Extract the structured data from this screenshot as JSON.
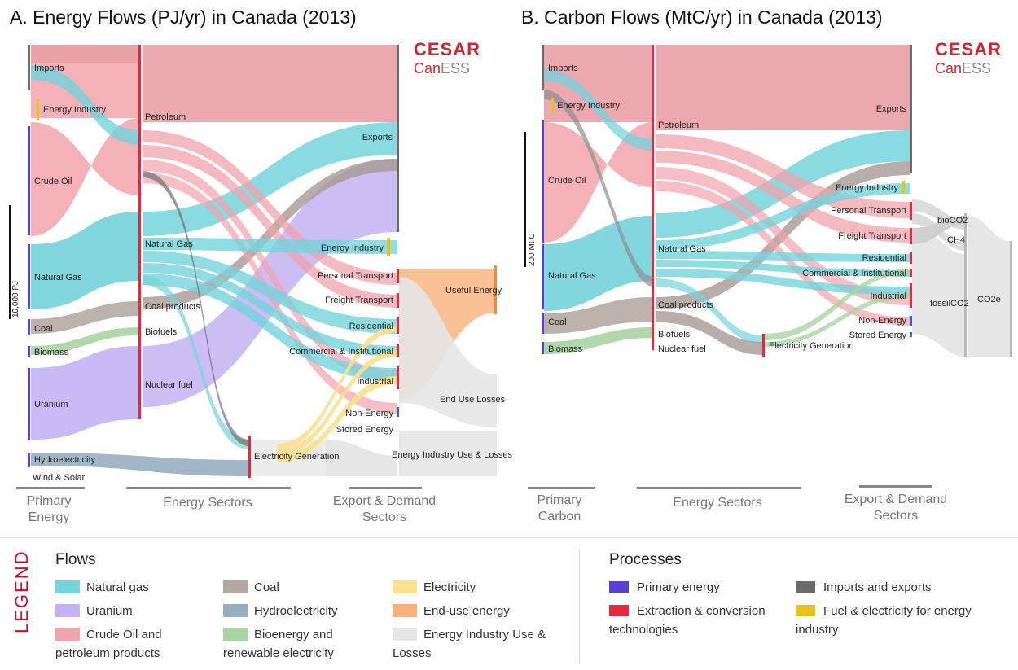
{
  "panel_a": {
    "title": "A. Energy Flows (PJ/yr) in Canada (2013)",
    "scale_label": "10,000 PJ",
    "primary_labels": [
      "Imports",
      "Energy Industry",
      "Crude Oil",
      "Natural Gas",
      "Coal",
      "Biomass",
      "Uranium",
      "Hydroelectricity",
      "Wind & Solar"
    ],
    "sector_labels": [
      "Petroleum",
      "Natural Gas",
      "Coal products",
      "Biofuels",
      "Nuclear fuel",
      "Electricity Generation"
    ],
    "demand_labels": [
      "Exports",
      "Energy Industry",
      "Personal Transport",
      "Freight Transport",
      "Residential",
      "Commercial & Institutional",
      "Industrial",
      "Non-Energy",
      "Stored Energy",
      "Useful Energy",
      "End Use Losses",
      "Energy Industry Use & Losses"
    ],
    "stages": [
      {
        "line1": "Primary",
        "line2": "Energy"
      },
      {
        "line1": "Energy Sectors",
        "line2": ""
      },
      {
        "line1": "Export & Demand",
        "line2": "Sectors"
      }
    ]
  },
  "panel_b": {
    "title": "B. Carbon Flows (MtC/yr) in Canada (2013)",
    "scale_label": "200 Mt C",
    "primary_labels": [
      "Imports",
      "Energy Industry",
      "Crude Oil",
      "Natural Gas",
      "Coal",
      "Biomass"
    ],
    "sector_labels": [
      "Petroleum",
      "Natural Gas",
      "Coal products",
      "Biofuels",
      "Nuclear fuel",
      "Electricity Generation"
    ],
    "demand_labels": [
      "Exports",
      "Energy Industry",
      "Personal Transport",
      "Freight Transport",
      "Residential",
      "Commercial & Institutional",
      "Industrial",
      "Non-Energy",
      "Stored Energy"
    ],
    "emission_labels": [
      "bioCO2",
      "CH4",
      "fossilCO2",
      "CO2e"
    ],
    "stages": [
      {
        "line1": "Primary",
        "line2": "Carbon"
      },
      {
        "line1": "Energy Sectors",
        "line2": ""
      },
      {
        "line1": "Export & Demand",
        "line2": "Sectors"
      }
    ]
  },
  "logo": {
    "cesar": "CESAR",
    "caness_a": "Can",
    "caness_b": "ESS"
  },
  "legend": {
    "word": "LEGEND",
    "flows_heading": "Flows",
    "processes_heading": "Processes",
    "flows": [
      {
        "label": "Natural gas",
        "color": "#74d3dc"
      },
      {
        "label": "Uranium",
        "color": "#c3b1f3"
      },
      {
        "label": "Crude Oil and petroleum products",
        "color": "#f2a3ab"
      },
      {
        "label": "Coal",
        "color": "#b5a8a2"
      },
      {
        "label": "Hydroelectricity",
        "color": "#97aec0"
      },
      {
        "label": "Bioenergy and renewable electricity",
        "color": "#a9d4a3"
      },
      {
        "label": "Electricity",
        "color": "#fde08d"
      },
      {
        "label": "End-use energy",
        "color": "#f9b07c"
      },
      {
        "label": "Energy Industry Use & Losses",
        "color": "#e6e6e6"
      }
    ],
    "processes": [
      {
        "label": "Primary energy",
        "color": "#5a3fd6"
      },
      {
        "label": "Extraction & conversion technologies",
        "color": "#e12a3e"
      },
      {
        "label": "Imports and exports",
        "color": "#6b6b6b"
      },
      {
        "label": "Fuel & electricity for energy industry",
        "color": "#e7c21b"
      }
    ]
  }
}
